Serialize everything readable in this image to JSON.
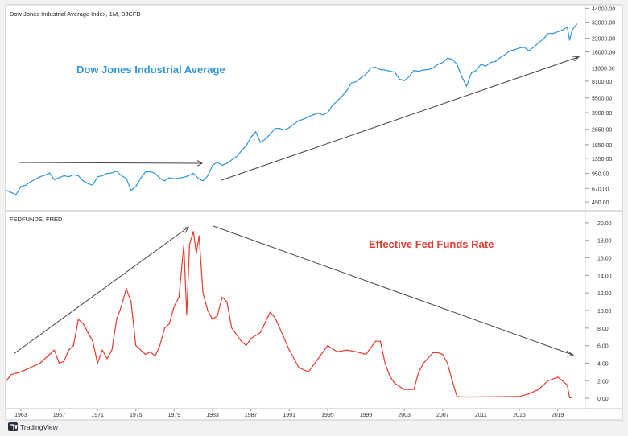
{
  "chart_data": [
    {
      "type": "line",
      "panel_label": "Dow Jones Industrial Average Index, 1M, DJCFD",
      "annotation": "Dow Jones Industrial Average",
      "y_scale": "log",
      "y_ticks": [
        "44000.00",
        "32000.00",
        "22000.00",
        "16000.00",
        "11000.00",
        "8100.00",
        "5500.00",
        "3900.00",
        "2650.00",
        "1850.00",
        "1350.00",
        "950.00",
        "670.00",
        "490.00"
      ],
      "ylim": [
        430,
        46000
      ],
      "xlim": [
        1961.5,
        2021.8
      ],
      "grid": false,
      "color": "#2f95dc",
      "x": [
        1961.5,
        1962.0,
        1962.5,
        1963.0,
        1963.5,
        1964.0,
        1964.5,
        1965.0,
        1965.5,
        1966.0,
        1966.5,
        1967.0,
        1967.5,
        1968.0,
        1968.5,
        1969.0,
        1969.5,
        1970.0,
        1970.5,
        1971.0,
        1971.5,
        1972.0,
        1972.5,
        1973.0,
        1973.5,
        1974.0,
        1974.5,
        1975.0,
        1975.5,
        1976.0,
        1976.5,
        1977.0,
        1977.5,
        1978.0,
        1978.5,
        1979.0,
        1979.5,
        1980.0,
        1980.5,
        1981.0,
        1981.5,
        1982.0,
        1982.5,
        1983.0,
        1983.5,
        1984.0,
        1984.5,
        1985.0,
        1985.5,
        1986.0,
        1986.5,
        1987.0,
        1987.5,
        1988.0,
        1988.5,
        1989.0,
        1989.5,
        1990.0,
        1990.5,
        1991.0,
        1991.5,
        1992.0,
        1992.5,
        1993.0,
        1993.5,
        1994.0,
        1994.5,
        1995.0,
        1995.5,
        1996.0,
        1996.5,
        1997.0,
        1997.5,
        1998.0,
        1998.5,
        1999.0,
        1999.5,
        2000.0,
        2000.5,
        2001.0,
        2001.5,
        2002.0,
        2002.5,
        2003.0,
        2003.5,
        2004.0,
        2004.5,
        2005.0,
        2005.5,
        2006.0,
        2006.5,
        2007.0,
        2007.5,
        2008.0,
        2008.5,
        2009.0,
        2009.5,
        2010.0,
        2010.5,
        2011.0,
        2011.5,
        2012.0,
        2012.5,
        2013.0,
        2013.5,
        2014.0,
        2014.5,
        2015.0,
        2015.5,
        2016.0,
        2016.5,
        2017.0,
        2017.5,
        2018.0,
        2018.5,
        2019.0,
        2019.5,
        2020.0,
        2020.25,
        2020.5,
        2021.0
      ],
      "values": [
        640,
        610,
        580,
        700,
        720,
        780,
        830,
        880,
        910,
        960,
        820,
        860,
        900,
        880,
        920,
        900,
        800,
        750,
        720,
        880,
        900,
        950,
        960,
        1000,
        900,
        850,
        640,
        700,
        850,
        980,
        990,
        950,
        850,
        800,
        860,
        840,
        850,
        870,
        900,
        950,
        850,
        800,
        900,
        1150,
        1230,
        1150,
        1200,
        1300,
        1400,
        1600,
        1800,
        2200,
        2500,
        1950,
        2100,
        2350,
        2700,
        2700,
        2600,
        2750,
        3000,
        3250,
        3350,
        3550,
        3700,
        3850,
        3700,
        3900,
        4600,
        5100,
        5700,
        6500,
        7800,
        8000,
        8800,
        9500,
        11000,
        11200,
        10600,
        10500,
        10200,
        10000,
        8500,
        8200,
        9000,
        10400,
        10200,
        10500,
        10600,
        11000,
        12000,
        12500,
        13800,
        13500,
        12000,
        9000,
        7200,
        9800,
        10400,
        12000,
        11500,
        12500,
        12800,
        14000,
        15000,
        16400,
        16800,
        17500,
        17800,
        16500,
        17800,
        19800,
        21500,
        24500,
        24500,
        25500,
        26500,
        28500,
        21000,
        26500,
        30500
      ]
    },
    {
      "type": "line",
      "panel_label": "FEDFUNDS, FRED",
      "annotation": "Effective Fed Funds Rate",
      "y_ticks": [
        "20.00",
        "18.00",
        "16.00",
        "14.00",
        "12.00",
        "10.00",
        "8.00",
        "6.00",
        "4.00",
        "2.00",
        "0.00"
      ],
      "ylim": [
        -1.0,
        21.0
      ],
      "xlim": [
        1961.5,
        2021.8
      ],
      "x_ticks": [
        "1963",
        "1967",
        "1971",
        "1975",
        "1979",
        "1983",
        "1987",
        "1991",
        "1995",
        "1999",
        "2003",
        "2007",
        "2011",
        "2015",
        "2019"
      ],
      "grid": false,
      "color": "#e8392c",
      "x": [
        1961.5,
        1962.0,
        1963.0,
        1964.0,
        1965.0,
        1966.0,
        1966.5,
        1967.0,
        1967.5,
        1968.0,
        1968.5,
        1969.0,
        1969.5,
        1970.0,
        1970.5,
        1971.0,
        1971.5,
        1972.0,
        1972.5,
        1973.0,
        1973.5,
        1974.0,
        1974.5,
        1975.0,
        1975.5,
        1976.0,
        1976.5,
        1977.0,
        1977.5,
        1978.0,
        1978.5,
        1979.0,
        1979.5,
        1980.0,
        1980.3,
        1980.6,
        1981.0,
        1981.3,
        1981.6,
        1982.0,
        1982.5,
        1983.0,
        1983.5,
        1984.0,
        1984.5,
        1985.0,
        1986.0,
        1986.5,
        1987.0,
        1988.0,
        1989.0,
        1989.5,
        1990.0,
        1991.0,
        1992.0,
        1993.0,
        1994.0,
        1995.0,
        1996.0,
        1997.0,
        1998.0,
        1999.0,
        2000.0,
        2000.5,
        2001.0,
        2001.5,
        2002.0,
        2003.0,
        2004.0,
        2004.5,
        2005.0,
        2006.0,
        2006.5,
        2007.0,
        2007.5,
        2008.0,
        2008.5,
        2009.0,
        2010.0,
        2015.0,
        2016.0,
        2017.0,
        2018.0,
        2019.0,
        2019.5,
        2020.0,
        2020.25,
        2020.5
      ],
      "values": [
        2.0,
        2.7,
        3.0,
        3.5,
        4.0,
        5.0,
        5.5,
        4.0,
        4.2,
        5.5,
        6.0,
        9.0,
        8.5,
        7.5,
        6.5,
        4.0,
        5.5,
        4.5,
        5.5,
        9.0,
        10.5,
        12.5,
        11.0,
        6.0,
        5.5,
        5.0,
        5.3,
        4.8,
        6.0,
        8.0,
        8.5,
        10.5,
        11.5,
        17.5,
        9.5,
        17.5,
        19.0,
        16.5,
        18.5,
        12.0,
        10.0,
        9.0,
        9.4,
        11.5,
        11.0,
        8.0,
        6.5,
        6.0,
        6.8,
        7.5,
        9.8,
        9.2,
        8.0,
        5.5,
        3.5,
        3.0,
        4.5,
        6.0,
        5.3,
        5.5,
        5.3,
        5.0,
        6.5,
        6.5,
        4.0,
        2.5,
        1.7,
        1.0,
        1.0,
        3.0,
        4.0,
        5.2,
        5.2,
        5.0,
        4.0,
        2.0,
        0.2,
        0.15,
        0.15,
        0.2,
        0.5,
        1.0,
        2.0,
        2.4,
        2.0,
        1.5,
        0.05,
        0.1
      ]
    }
  ],
  "footer": {
    "brand": "TradingView"
  }
}
